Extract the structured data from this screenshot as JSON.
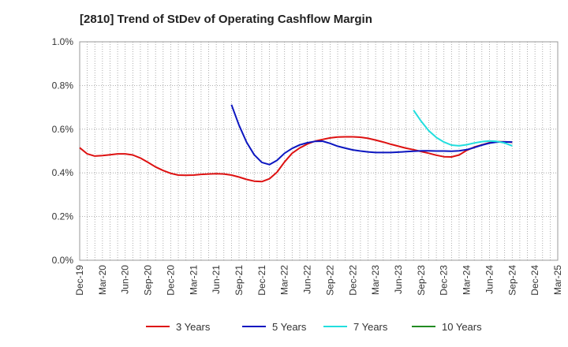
{
  "chart_data": {
    "type": "line",
    "title": "[2810]  Trend of StDev of Operating Cashflow Margin",
    "xlabel": "",
    "ylabel": "",
    "y_ticks": [
      "1.0%",
      "0.8%",
      "0.6%",
      "0.4%",
      "0.2%",
      "0.0%"
    ],
    "ylim": [
      0,
      1.0
    ],
    "x_ticks": [
      "Dec-19",
      "Mar-20",
      "Jun-20",
      "Sep-20",
      "Dec-20",
      "Mar-21",
      "Jun-21",
      "Sep-21",
      "Dec-21",
      "Mar-22",
      "Jun-22",
      "Sep-22",
      "Dec-22",
      "Mar-23",
      "Jun-23",
      "Sep-23",
      "Dec-23",
      "Mar-24",
      "Jun-24",
      "Sep-24",
      "Dec-24",
      "Mar-25"
    ],
    "grid": true,
    "legend_position": "bottom",
    "series": [
      {
        "name": "3 Years",
        "color": "#dd1111",
        "x": [
          "Dec-19",
          "Jan-20",
          "Feb-20",
          "Mar-20",
          "Apr-20",
          "May-20",
          "Jun-20",
          "Jul-20",
          "Aug-20",
          "Sep-20",
          "Oct-20",
          "Nov-20",
          "Dec-20",
          "Jan-21",
          "Feb-21",
          "Mar-21",
          "Apr-21",
          "May-21",
          "Jun-21",
          "Jul-21",
          "Aug-21",
          "Sep-21",
          "Oct-21",
          "Nov-21",
          "Dec-21",
          "Jan-22",
          "Feb-22",
          "Mar-22",
          "Apr-22",
          "May-22",
          "Jun-22",
          "Jul-22",
          "Aug-22",
          "Sep-22",
          "Oct-22",
          "Nov-22",
          "Dec-22",
          "Jan-23",
          "Feb-23",
          "Mar-23",
          "Apr-23",
          "May-23",
          "Jun-23",
          "Jul-23",
          "Aug-23",
          "Sep-23",
          "Oct-23",
          "Nov-23",
          "Dec-23",
          "Jan-24",
          "Feb-24",
          "Mar-24",
          "Apr-24",
          "May-24",
          "Jun-24",
          "Jul-24",
          "Aug-24",
          "Sep-24"
        ],
        "values": [
          0.515,
          0.487,
          0.477,
          0.479,
          0.483,
          0.487,
          0.487,
          0.482,
          0.468,
          0.448,
          0.427,
          0.411,
          0.398,
          0.39,
          0.389,
          0.39,
          0.393,
          0.395,
          0.396,
          0.395,
          0.39,
          0.381,
          0.37,
          0.362,
          0.36,
          0.373,
          0.403,
          0.45,
          0.49,
          0.514,
          0.532,
          0.545,
          0.553,
          0.56,
          0.564,
          0.565,
          0.565,
          0.563,
          0.558,
          0.55,
          0.541,
          0.531,
          0.522,
          0.513,
          0.506,
          0.498,
          0.49,
          0.481,
          0.474,
          0.473,
          0.482,
          0.503,
          0.518,
          0.528,
          0.538,
          0.543,
          0.542,
          0.54
        ]
      },
      {
        "name": "5 Years",
        "color": "#0c16c0",
        "x": [
          "Aug-21",
          "Sep-21",
          "Oct-21",
          "Nov-21",
          "Dec-21",
          "Jan-22",
          "Feb-22",
          "Mar-22",
          "Apr-22",
          "May-22",
          "Jun-22",
          "Jul-22",
          "Aug-22",
          "Sep-22",
          "Oct-22",
          "Nov-22",
          "Dec-22",
          "Jan-23",
          "Feb-23",
          "Mar-23",
          "Apr-23",
          "May-23",
          "Jun-23",
          "Jul-23",
          "Aug-23",
          "Sep-23",
          "Oct-23",
          "Nov-23",
          "Dec-23",
          "Jan-24",
          "Feb-24",
          "Mar-24",
          "Apr-24",
          "May-24",
          "Jun-24",
          "Jul-24",
          "Aug-24",
          "Sep-24"
        ],
        "values": [
          0.712,
          0.618,
          0.54,
          0.483,
          0.448,
          0.438,
          0.457,
          0.49,
          0.512,
          0.528,
          0.538,
          0.544,
          0.545,
          0.535,
          0.522,
          0.513,
          0.505,
          0.5,
          0.496,
          0.493,
          0.493,
          0.493,
          0.495,
          0.497,
          0.499,
          0.501,
          0.501,
          0.5,
          0.5,
          0.499,
          0.501,
          0.506,
          0.516,
          0.527,
          0.536,
          0.541,
          0.542,
          0.541
        ]
      },
      {
        "name": "7 Years",
        "color": "#22dede",
        "x": [
          "Aug-23",
          "Sep-23",
          "Oct-23",
          "Nov-23",
          "Dec-23",
          "Jan-24",
          "Feb-24",
          "Mar-24",
          "Apr-24",
          "May-24",
          "Jun-24",
          "Jul-24",
          "Aug-24",
          "Sep-24"
        ],
        "values": [
          0.687,
          0.636,
          0.593,
          0.562,
          0.541,
          0.527,
          0.524,
          0.529,
          0.537,
          0.543,
          0.546,
          0.544,
          0.537,
          0.524
        ]
      },
      {
        "name": "10 Years",
        "color": "#228b22",
        "x": [],
        "values": []
      }
    ]
  }
}
